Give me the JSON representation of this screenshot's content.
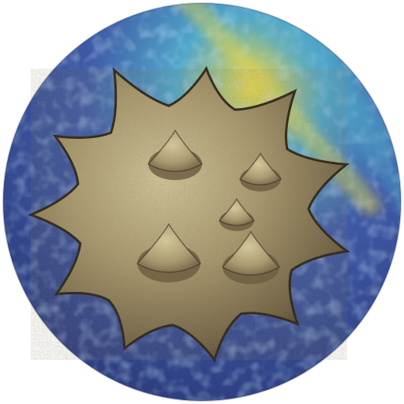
{
  "icon": {
    "name": "spiked-ball-icon",
    "shape": "circle",
    "colors": {
      "background_deep": "#2b3a7a",
      "background_mid": "#3f5aa6",
      "background_cyan": "#4fa7c9",
      "background_glow": "#e6d64a",
      "rock_dark": "#3a3123",
      "rock_mid": "#6e5f43",
      "rock_light": "#a8986e",
      "rock_highlight": "#d3c79a"
    }
  }
}
